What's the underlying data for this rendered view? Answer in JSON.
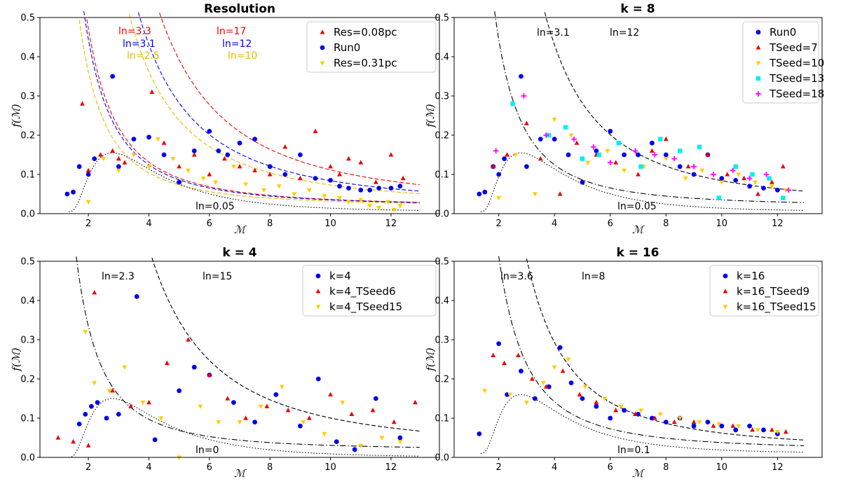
{
  "chart_data": [
    {
      "type": "scatter",
      "title": "Resolution",
      "xlabel": "ℳ",
      "ylabel": "f(ℳ)",
      "xlim": [
        0.4,
        13.6
      ],
      "ylim": [
        0,
        0.5
      ],
      "xticks": [
        "2",
        "4",
        "6",
        "8",
        "10",
        "12"
      ],
      "yticks": [
        "0.0",
        "0.1",
        "0.2",
        "0.3",
        "0.4",
        "0.5"
      ],
      "legend_position": "top-right",
      "series": [
        {
          "name": "Res=0.08pc",
          "color": "#ee0000",
          "marker": "triangle-up",
          "x": [
            1.8,
            2.0,
            3.0,
            4.1,
            2.4,
            2.8,
            3.2,
            4.5,
            5.0,
            5.5,
            6.0,
            6.5,
            7.0,
            7.5,
            8.0,
            8.5,
            9.0,
            9.5,
            10.0,
            10.3,
            10.6,
            11.0,
            11.5,
            12.0,
            12.4
          ],
          "y": [
            0.28,
            0.11,
            0.14,
            0.31,
            0.15,
            0.16,
            0.13,
            0.18,
            0.12,
            0.15,
            0.1,
            0.14,
            0.12,
            0.11,
            0.1,
            0.17,
            0.09,
            0.21,
            0.12,
            0.1,
            0.14,
            0.13,
            0.08,
            0.15,
            0.09
          ]
        },
        {
          "name": "Run0",
          "color": "#0000ee",
          "marker": "circle",
          "x": [
            1.3,
            1.5,
            1.7,
            2.0,
            2.2,
            2.8,
            3.0,
            3.5,
            4.0,
            4.5,
            5.0,
            5.5,
            6.0,
            6.3,
            6.6,
            7.0,
            7.5,
            8.0,
            8.5,
            9.0,
            9.5,
            10.0,
            10.3,
            10.6,
            11.0,
            11.3,
            11.6,
            12.0,
            12.3
          ],
          "y": [
            0.05,
            0.055,
            0.12,
            0.1,
            0.14,
            0.35,
            0.12,
            0.19,
            0.195,
            0.15,
            0.08,
            0.16,
            0.21,
            0.16,
            0.15,
            0.18,
            0.19,
            0.12,
            0.1,
            0.15,
            0.09,
            0.085,
            0.07,
            0.065,
            0.06,
            0.06,
            0.065,
            0.065,
            0.07
          ]
        },
        {
          "name": "Res=0.31pc",
          "color": "#ffcc00",
          "marker": "triangle-down",
          "x": [
            2.0,
            2.5,
            3.0,
            3.5,
            4.0,
            4.3,
            4.8,
            5.3,
            5.8,
            6.2,
            6.8,
            7.2,
            7.8,
            8.3,
            8.8,
            9.3,
            9.8,
            10.3,
            10.6,
            11.0,
            11.3,
            11.6,
            11.9,
            12.1,
            12.3
          ],
          "y": [
            0.03,
            0.14,
            0.11,
            0.15,
            0.12,
            0.19,
            0.14,
            0.11,
            0.09,
            0.08,
            0.12,
            0.075,
            0.06,
            0.07,
            0.05,
            0.06,
            0.045,
            0.04,
            0.03,
            0.035,
            0.02,
            0.015,
            0.03,
            0.01,
            0.02
          ]
        }
      ],
      "curves": [
        {
          "label": "ln=3.3",
          "color": "#ee0000",
          "style": "dashed",
          "kind": "lognormal",
          "ln": 3.3
        },
        {
          "label": "ln=3.1",
          "color": "#0000ee",
          "style": "dashed",
          "kind": "lognormal",
          "ln": 3.1
        },
        {
          "label": "ln=2.5",
          "color": "#ffcc00",
          "style": "dashed",
          "kind": "lognormal",
          "ln": 2.5
        },
        {
          "label": "ln=17",
          "color": "#ee0000",
          "style": "dashed",
          "kind": "lognormal",
          "ln": 17
        },
        {
          "label": "ln=12",
          "color": "#0000ee",
          "style": "dashed",
          "kind": "lognormal",
          "ln": 12
        },
        {
          "label": "ln=10",
          "color": "#ffcc00",
          "style": "dashed",
          "kind": "lognormal",
          "ln": 10
        },
        {
          "label": "ln=0.05",
          "color": "#000000",
          "style": "dotted",
          "kind": "lognormal",
          "ln": 0.05
        }
      ]
    },
    {
      "type": "scatter",
      "title": "k = 8",
      "xlabel": "ℳ",
      "ylabel": "f(ℳ)",
      "xlim": [
        0.4,
        13.6
      ],
      "ylim": [
        0,
        0.5
      ],
      "xticks": [
        "2",
        "4",
        "6",
        "8",
        "10",
        "12"
      ],
      "yticks": [
        "0.0",
        "0.1",
        "0.2",
        "0.3",
        "0.4",
        "0.5"
      ],
      "legend_position": "top-right",
      "series": [
        {
          "name": "Run0",
          "color": "#0000ee",
          "marker": "circle",
          "x": [
            1.3,
            1.5,
            1.8,
            2.0,
            2.2,
            2.8,
            3.0,
            3.5,
            4.0,
            4.5,
            5.0,
            5.5,
            6.0,
            6.5,
            7.0,
            7.5,
            8.0,
            8.5,
            9.0,
            9.5,
            10.0,
            10.5,
            11.0,
            11.5,
            12.0
          ],
          "y": [
            0.05,
            0.055,
            0.12,
            0.1,
            0.14,
            0.35,
            0.12,
            0.19,
            0.19,
            0.15,
            0.08,
            0.16,
            0.21,
            0.15,
            0.15,
            0.18,
            0.15,
            0.12,
            0.1,
            0.15,
            0.09,
            0.085,
            0.07,
            0.065,
            0.06
          ]
        },
        {
          "name": "TSeed=7",
          "color": "#ee0000",
          "marker": "triangle-up",
          "x": [
            1.8,
            2.3,
            3.0,
            3.5,
            4.2,
            4.8,
            5.5,
            6.2,
            7.0,
            7.5,
            8.0,
            8.8,
            9.5,
            10.2,
            10.8,
            11.3,
            11.8,
            12.2
          ],
          "y": [
            0.12,
            0.15,
            0.23,
            0.14,
            0.05,
            0.18,
            0.15,
            0.13,
            0.1,
            0.16,
            0.19,
            0.12,
            0.15,
            0.1,
            0.09,
            0.05,
            0.08,
            0.12
          ]
        },
        {
          "name": "TSeed=10",
          "color": "#ffcc00",
          "marker": "triangle-down",
          "x": [
            2.0,
            2.6,
            3.3,
            4.0,
            4.6,
            5.2,
            5.9,
            6.5,
            7.2,
            8.0,
            8.7,
            9.3,
            10.0,
            10.6,
            11.2,
            11.8,
            12.3
          ],
          "y": [
            0.04,
            0.15,
            0.05,
            0.24,
            0.2,
            0.13,
            0.16,
            0.11,
            0.12,
            0.14,
            0.09,
            0.11,
            0.08,
            0.1,
            0.08,
            0.07,
            0.06
          ]
        },
        {
          "name": "TSeed=13",
          "color": "#00eeee",
          "marker": "square",
          "x": [
            2.5,
            3.8,
            4.4,
            5.0,
            5.6,
            6.3,
            7.1,
            7.8,
            8.5,
            9.2,
            9.9,
            10.5,
            11.1,
            11.7,
            12.2
          ],
          "y": [
            0.28,
            0.2,
            0.22,
            0.14,
            0.15,
            0.18,
            0.12,
            0.19,
            0.16,
            0.17,
            0.04,
            0.12,
            0.1,
            0.09,
            0.04
          ]
        },
        {
          "name": "TSeed=18",
          "color": "#ff00ff",
          "marker": "plus",
          "x": [
            1.9,
            2.9,
            3.7,
            4.7,
            5.4,
            6.0,
            6.9,
            7.6,
            8.3,
            9.0,
            9.7,
            10.4,
            11.0,
            11.6,
            12.4
          ],
          "y": [
            0.16,
            0.3,
            0.2,
            0.19,
            0.17,
            0.13,
            0.16,
            0.15,
            0.14,
            0.12,
            0.1,
            0.11,
            0.09,
            0.1,
            0.06
          ]
        }
      ],
      "curves": [
        {
          "label": "ln=3.1",
          "color": "#000000",
          "style": "dashdot",
          "kind": "lognormal",
          "ln": 3.1
        },
        {
          "label": "ln=12",
          "color": "#000000",
          "style": "dashed",
          "kind": "lognormal",
          "ln": 12
        },
        {
          "label": "ln=0.05",
          "color": "#000000",
          "style": "dotted",
          "kind": "lognormal",
          "ln": 0.05
        }
      ]
    },
    {
      "type": "scatter",
      "title": "k = 4",
      "xlabel": "ℳ",
      "ylabel": "f(ℳ)",
      "xlim": [
        0.4,
        13.6
      ],
      "ylim": [
        0,
        0.5
      ],
      "xticks": [
        "2",
        "4",
        "6",
        "8",
        "10",
        "12"
      ],
      "yticks": [
        "0.0",
        "0.1",
        "0.2",
        "0.3",
        "0.4",
        "0.5"
      ],
      "legend_position": "top-right",
      "series": [
        {
          "name": "k=4",
          "color": "#0000ee",
          "marker": "circle",
          "x": [
            1.7,
            1.9,
            2.1,
            2.3,
            2.6,
            3.0,
            3.6,
            4.2,
            5.0,
            5.5,
            6.0,
            6.8,
            7.5,
            8.2,
            9.0,
            9.6,
            10.2,
            10.8,
            11.5,
            12.3
          ],
          "y": [
            0.085,
            0.11,
            0.13,
            0.14,
            0.1,
            0.11,
            0.41,
            0.045,
            0.17,
            0.23,
            0.21,
            0.14,
            0.09,
            0.16,
            0.08,
            0.2,
            0.04,
            0.02,
            0.15,
            0.05
          ]
        },
        {
          "name": "k=4_TSeed6",
          "color": "#ee0000",
          "marker": "triangle-up",
          "x": [
            1.0,
            1.5,
            2.0,
            2.2,
            2.8,
            3.4,
            4.0,
            4.6,
            5.3,
            6.0,
            6.6,
            7.2,
            7.9,
            8.6,
            9.3,
            10.0,
            10.7,
            11.4,
            12.1,
            12.8
          ],
          "y": [
            0.05,
            0.04,
            0.03,
            0.42,
            0.17,
            0.13,
            0.14,
            0.24,
            0.3,
            0.21,
            0.15,
            0.1,
            0.13,
            0.12,
            0.1,
            0.16,
            0.11,
            0.12,
            0.09,
            0.14
          ]
        },
        {
          "name": "k=4_TSeed15",
          "color": "#ffcc00",
          "marker": "triangle-down",
          "x": [
            1.9,
            2.2,
            2.7,
            3.2,
            3.8,
            4.4,
            5.0,
            5.7,
            6.3,
            7.0,
            7.7,
            8.4,
            9.1,
            9.8,
            10.4,
            11.0,
            11.7,
            12.3
          ],
          "y": [
            0.32,
            0.19,
            0.17,
            0.23,
            0.14,
            0.1,
            0.0,
            0.13,
            0.09,
            0.09,
            0.13,
            0.18,
            0.09,
            0.06,
            0.14,
            0.03,
            0.05,
            0.04
          ]
        }
      ],
      "curves": [
        {
          "label": "ln=2.3",
          "color": "#000000",
          "style": "dashdot",
          "kind": "lognormal",
          "ln": 2.3
        },
        {
          "label": "ln=15",
          "color": "#000000",
          "style": "dashed",
          "kind": "lognormal",
          "ln": 15
        },
        {
          "label": "ln=0",
          "color": "#000000",
          "style": "dotted",
          "kind": "lognormal",
          "ln": 0
        }
      ]
    },
    {
      "type": "scatter",
      "title": "k = 16",
      "xlabel": "ℳ",
      "ylabel": "f(ℳ)",
      "xlim": [
        0.4,
        13.6
      ],
      "ylim": [
        0,
        0.5
      ],
      "xticks": [
        "2",
        "4",
        "6",
        "8",
        "10",
        "12"
      ],
      "yticks": [
        "0.0",
        "0.1",
        "0.2",
        "0.3",
        "0.4",
        "0.5"
      ],
      "legend_position": "top-right",
      "series": [
        {
          "name": "k=16",
          "color": "#0000ee",
          "marker": "circle",
          "x": [
            1.3,
            2.0,
            2.3,
            2.8,
            3.3,
            3.8,
            4.2,
            4.6,
            5.0,
            5.5,
            6.0,
            6.5,
            7.0,
            7.5,
            8.0,
            8.5,
            9.0,
            9.5,
            10.0,
            10.5,
            11.0,
            11.5,
            12.0
          ],
          "y": [
            0.06,
            0.29,
            0.16,
            0.22,
            0.15,
            0.18,
            0.28,
            0.19,
            0.15,
            0.13,
            0.1,
            0.12,
            0.11,
            0.1,
            0.09,
            0.1,
            0.08,
            0.09,
            0.08,
            0.07,
            0.08,
            0.07,
            0.06
          ]
        },
        {
          "name": "k=16_TSeed9",
          "color": "#ee0000",
          "marker": "triangle-up",
          "x": [
            1.8,
            2.2,
            2.7,
            3.2,
            3.7,
            4.3,
            4.9,
            5.5,
            6.2,
            6.9,
            7.6,
            8.3,
            9.0,
            9.7,
            10.4,
            11.1,
            11.8,
            12.3
          ],
          "y": [
            0.26,
            0.24,
            0.26,
            0.2,
            0.18,
            0.22,
            0.16,
            0.14,
            0.12,
            0.11,
            0.1,
            0.09,
            0.09,
            0.08,
            0.08,
            0.07,
            0.07,
            0.065
          ]
        },
        {
          "name": "k=16_TSeed15",
          "color": "#ffcc00",
          "marker": "triangle-down",
          "x": [
            1.5,
            2.4,
            3.0,
            3.6,
            4.0,
            4.5,
            5.1,
            5.8,
            6.4,
            7.1,
            7.8,
            8.5,
            9.2,
            9.9,
            10.6,
            11.3,
            12.0
          ],
          "y": [
            0.17,
            0.16,
            0.14,
            0.19,
            0.23,
            0.25,
            0.18,
            0.15,
            0.13,
            0.12,
            0.11,
            0.1,
            0.09,
            0.085,
            0.08,
            0.07,
            0.065
          ]
        }
      ],
      "curves": [
        {
          "label": "ln=3.6",
          "color": "#000000",
          "style": "dashdot",
          "kind": "lognormal",
          "ln": 3.6
        },
        {
          "label": "ln=8",
          "color": "#000000",
          "style": "dashed",
          "kind": "lognormal",
          "ln": 8
        },
        {
          "label": "ln=0.1",
          "color": "#000000",
          "style": "dotted",
          "kind": "lognormal",
          "ln": 0.1
        }
      ]
    }
  ]
}
